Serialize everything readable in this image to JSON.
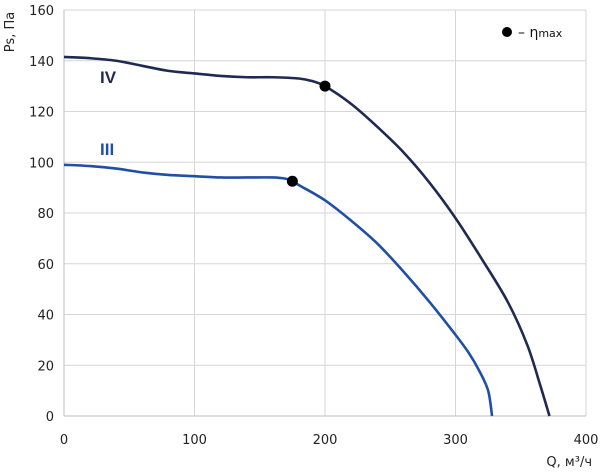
{
  "chart_data": {
    "type": "line",
    "xlabel": "Q, м³/ч",
    "ylabel": "Ps, Па",
    "xlim": [
      0,
      400
    ],
    "ylim": [
      0,
      160
    ],
    "xticks": [
      0,
      100,
      200,
      300,
      400
    ],
    "yticks": [
      0,
      20,
      40,
      60,
      80,
      100,
      120,
      140,
      160
    ],
    "grid": true,
    "legend": {
      "position": "top-right",
      "label": "– ηmax",
      "eta": "η",
      "sub": "max"
    },
    "colors": {
      "IV": "#1f2a52",
      "III": "#1f4fa6",
      "grid": "#d6d6d6",
      "marker": "#000000"
    },
    "series": [
      {
        "name": "IV",
        "x": [
          0,
          20,
          40,
          60,
          80,
          100,
          120,
          140,
          160,
          180,
          190,
          200,
          220,
          240,
          260,
          280,
          300,
          320,
          340,
          355,
          365,
          372
        ],
        "y": [
          141.5,
          141,
          140,
          138,
          136,
          135,
          134,
          133.5,
          133.5,
          133,
          132,
          130,
          123,
          114,
          104,
          92,
          78,
          62,
          45,
          28,
          12,
          0
        ],
        "eta_max": {
          "x": 200,
          "y": 130
        }
      },
      {
        "name": "III",
        "x": [
          0,
          20,
          40,
          60,
          80,
          100,
          120,
          140,
          160,
          170,
          175,
          180,
          200,
          220,
          240,
          260,
          280,
          300,
          310,
          318,
          325,
          328
        ],
        "y": [
          99,
          98.5,
          97.5,
          96,
          95,
          94.5,
          94,
          94,
          94,
          93.5,
          92.5,
          91,
          85,
          77,
          68,
          57,
          45,
          32,
          25,
          18,
          10,
          0
        ],
        "eta_max": {
          "x": 175,
          "y": 92.5
        }
      }
    ]
  }
}
